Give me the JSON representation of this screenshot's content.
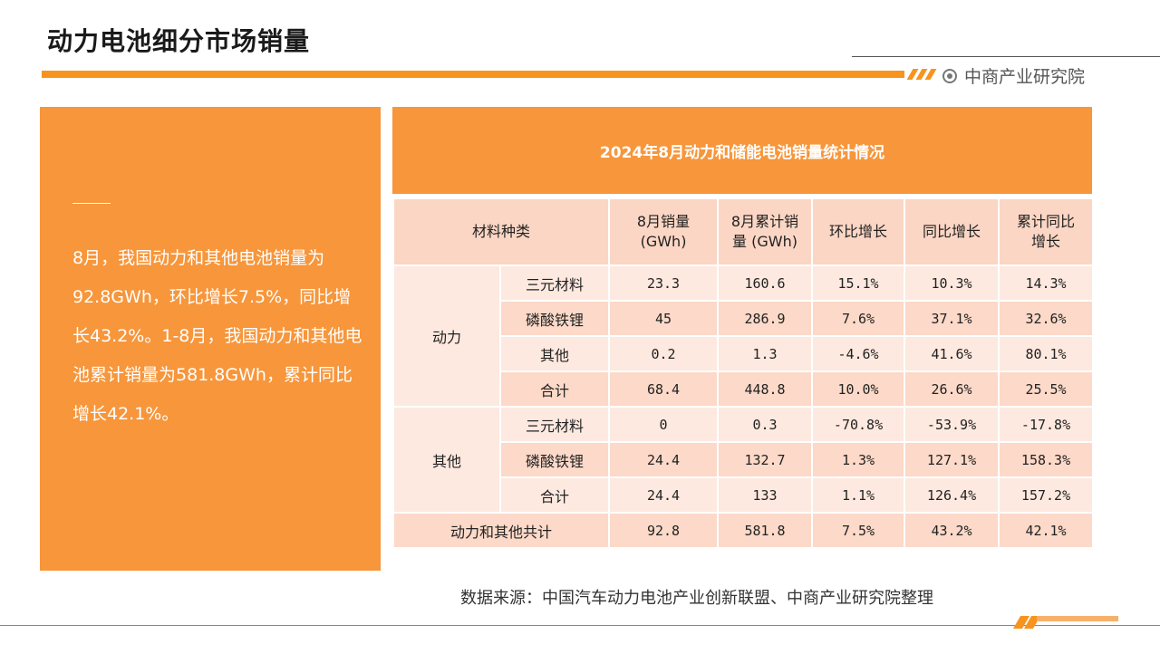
{
  "page": {
    "title": "动力电池细分市场销量",
    "brand": "中商产业研究院",
    "source": "数据来源：中国汽车动力电池产业创新联盟、中商产业研究院整理"
  },
  "summary": {
    "text": "8月，我国动力和其他电池销量为92.8GWh，环比增长7.5%，同比增长43.2%。1-8月，我国动力和其他电池累计销量为581.8GWh，累计同比增长42.1%。"
  },
  "table": {
    "title": "2024年8月动力和储能电池销量统计情况",
    "headers": {
      "material": "材料种类",
      "aug_sales": "8月销量\n(GWh)",
      "cum_sales": "8月累计销\n量 (GWh)",
      "mom": "环比增长",
      "yoy": "同比增长",
      "cum_yoy": "累计同比\n增长"
    },
    "groups": [
      {
        "name": "动力",
        "rows": [
          {
            "type": "三元材料",
            "aug": "23.3",
            "cum": "160.6",
            "mom": "15.1%",
            "yoy": "10.3%",
            "cum_yoy": "14.3%"
          },
          {
            "type": "磷酸铁锂",
            "aug": "45",
            "cum": "286.9",
            "mom": "7.6%",
            "yoy": "37.1%",
            "cum_yoy": "32.6%"
          },
          {
            "type": "其他",
            "aug": "0.2",
            "cum": "1.3",
            "mom": "-4.6%",
            "yoy": "41.6%",
            "cum_yoy": "80.1%"
          },
          {
            "type": "合计",
            "aug": "68.4",
            "cum": "448.8",
            "mom": "10.0%",
            "yoy": "26.6%",
            "cum_yoy": "25.5%"
          }
        ]
      },
      {
        "name": "其他",
        "rows": [
          {
            "type": "三元材料",
            "aug": "0",
            "cum": "0.3",
            "mom": "-70.8%",
            "yoy": "-53.9%",
            "cum_yoy": "-17.8%"
          },
          {
            "type": "磷酸铁锂",
            "aug": "24.4",
            "cum": "132.7",
            "mom": "1.3%",
            "yoy": "127.1%",
            "cum_yoy": "158.3%"
          },
          {
            "type": "合计",
            "aug": "24.4",
            "cum": "133",
            "mom": "1.1%",
            "yoy": "126.4%",
            "cum_yoy": "157.2%"
          }
        ]
      }
    ],
    "total": {
      "label": "动力和其他共计",
      "aug": "92.8",
      "cum": "581.8",
      "mom": "7.5%",
      "yoy": "43.2%",
      "cum_yoy": "42.1%"
    }
  },
  "colors": {
    "accent": "#f7941e",
    "panel": "#f7963b",
    "header_cell": "#fbd6c4",
    "row_light": "#fde9df",
    "row_dark": "#fcd9c8"
  }
}
